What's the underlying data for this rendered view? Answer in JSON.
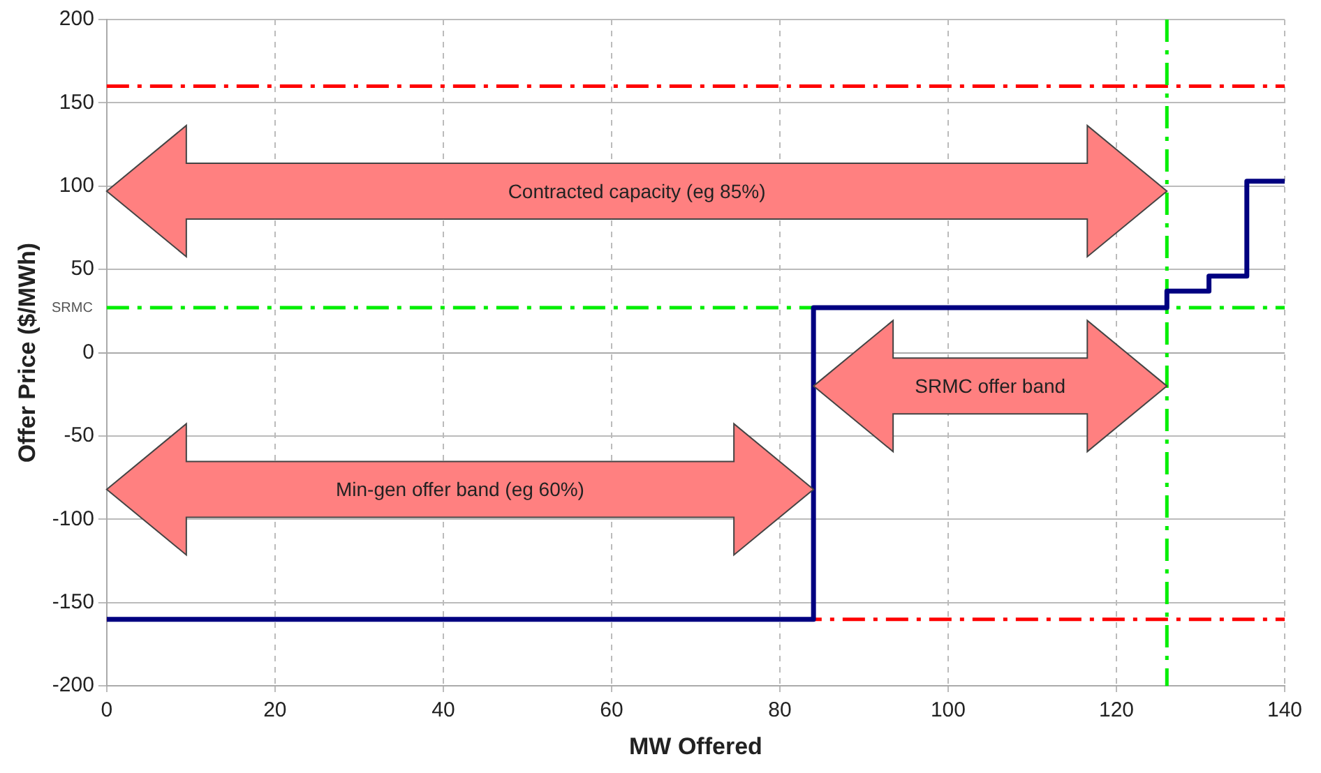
{
  "chart_data": {
    "type": "step",
    "xlabel": "MW Offered",
    "ylabel": "Offer Price ($/MWh)",
    "x": [
      0,
      84,
      126,
      131,
      135.5,
      140
    ],
    "series": [
      {
        "color": "#000080",
        "values": [
          -160,
          27,
          37,
          46,
          103,
          103
        ]
      }
    ],
    "xlim": [
      0,
      140
    ],
    "xticks": [
      0,
      20,
      40,
      60,
      80,
      100,
      120,
      140
    ],
    "ylim": [
      -200,
      200
    ],
    "yticks": [
      -200,
      -150,
      -100,
      -50,
      0,
      50,
      100,
      150,
      200
    ],
    "grid": true,
    "legend": false,
    "marker": "none",
    "ref_lines": [
      {
        "axis": "y",
        "value": 160,
        "color": "#ff0000",
        "line_style": "dashed"
      },
      {
        "axis": "y",
        "value": -160,
        "color": "#ff0000",
        "line_style": "dashed"
      },
      {
        "axis": "y",
        "value": 27,
        "label": "SRMC",
        "color": "#00ee00",
        "line_style": "dashed"
      },
      {
        "axis": "x",
        "value": 126,
        "color": "#00ee00",
        "line_style": "dashed"
      }
    ],
    "annotations": [
      "Contracted capacity (eg 85%)",
      "SRMC offer band",
      "Min-gen offer band (eg 60%)"
    ]
  }
}
